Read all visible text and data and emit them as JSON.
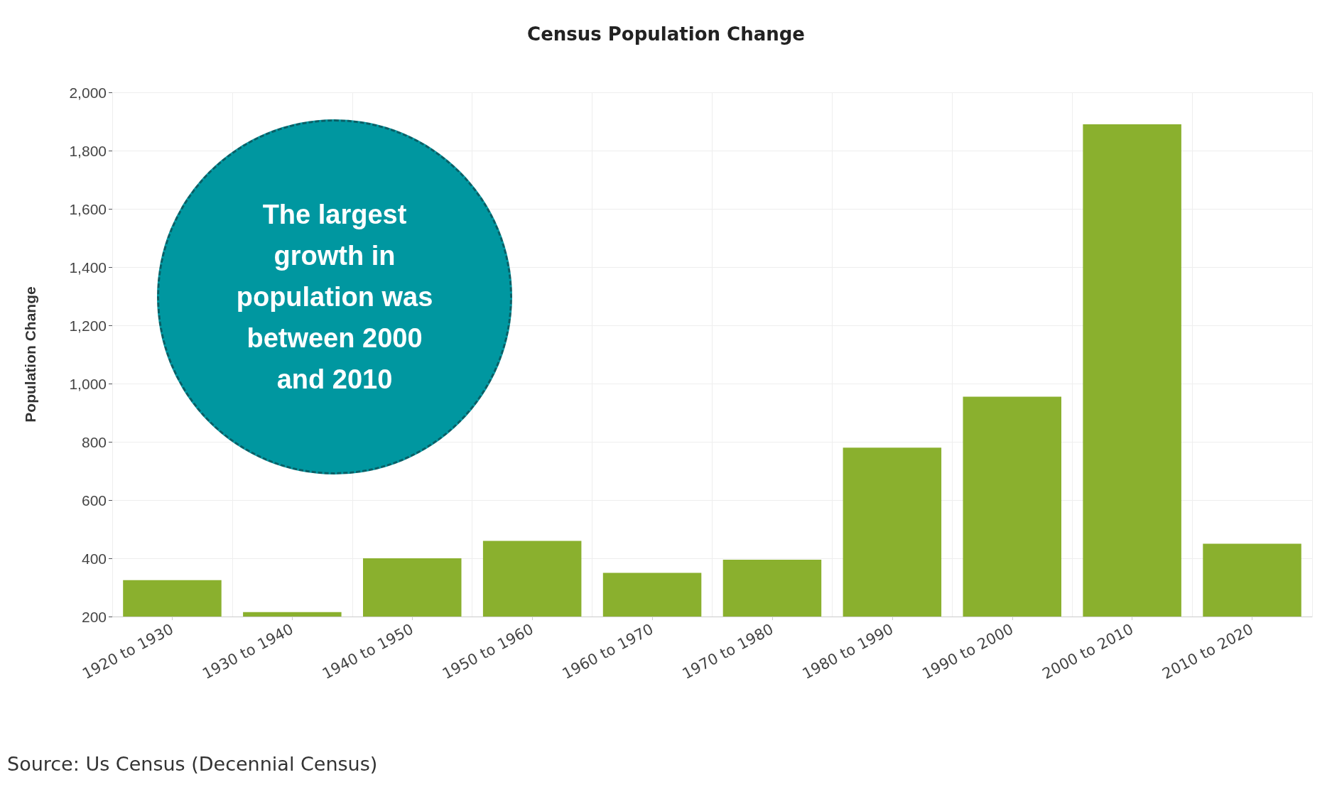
{
  "chart_data": {
    "type": "bar",
    "title": "Census Population Change",
    "ylabel": "Population Change",
    "categories": [
      "1920 to 1930",
      "1930 to 1940",
      "1940 to 1950",
      "1950 to 1960",
      "1960 to 1970",
      "1970 to 1980",
      "1980 to 1990",
      "1990 to 2000",
      "2000 to 2010",
      "2010 to 2020"
    ],
    "values": [
      325,
      215,
      400,
      460,
      350,
      395,
      780,
      955,
      1890,
      450
    ],
    "color": "#8ab02e",
    "ylim": [
      200,
      2000
    ],
    "yticks": [
      200,
      400,
      600,
      800,
      {
        "value": 1000,
        "label": "1,000"
      },
      {
        "value": 1200,
        "label": "1,200"
      },
      {
        "value": 1400,
        "label": "1,400"
      },
      {
        "value": 1600,
        "label": "1,600"
      },
      {
        "value": 1800,
        "label": "1,800"
      },
      {
        "value": 2000,
        "label": "2,000"
      }
    ],
    "grid": true,
    "annotations": [
      "The largest growth in population was between 2000 and 2010",
      "Source: Us Census (Decennial Census)"
    ]
  }
}
